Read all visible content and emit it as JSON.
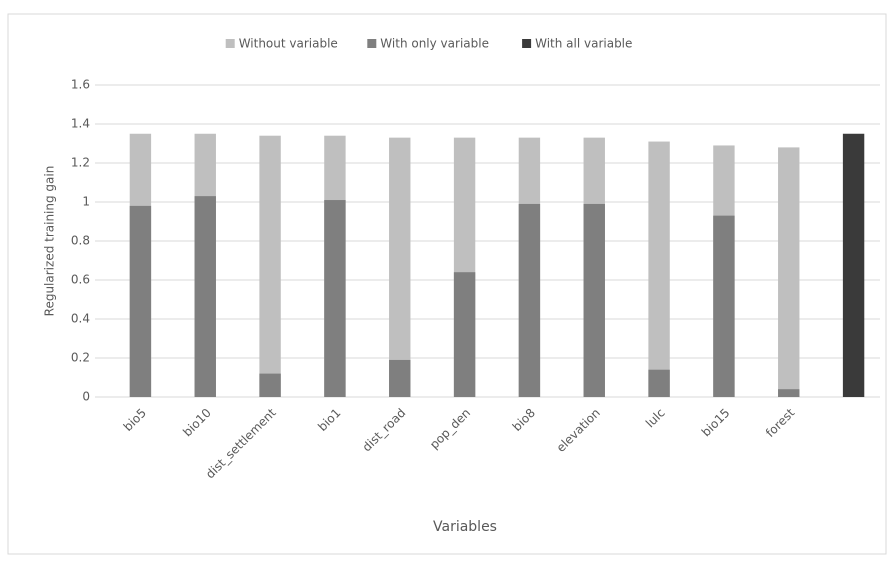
{
  "chart_data": {
    "type": "bar",
    "barmode": "overlay",
    "x_label": "Variables",
    "y_label": "Regularized training gain",
    "categories": [
      "bio5",
      "bio10",
      "dist_settlement",
      "bio1",
      "dist_road",
      "pop_den",
      "bio8",
      "elevation",
      "lulc",
      "bio15",
      "forest",
      null
    ],
    "series": [
      {
        "name": "Without variable",
        "color": "#bfbfbf",
        "values": [
          1.35,
          1.35,
          1.34,
          1.34,
          1.33,
          1.33,
          1.33,
          1.33,
          1.31,
          1.29,
          1.28,
          null
        ]
      },
      {
        "name": "With only variable",
        "color": "#7f7f7f",
        "values": [
          0.98,
          1.03,
          0.12,
          1.01,
          0.19,
          0.64,
          0.99,
          0.99,
          0.14,
          0.93,
          0.04,
          null
        ]
      },
      {
        "name": "With all variable",
        "color": "#3a3a3a",
        "values": [
          null,
          null,
          null,
          null,
          null,
          null,
          null,
          null,
          null,
          null,
          null,
          1.35
        ]
      }
    ],
    "ylim": [
      0,
      1.6
    ],
    "yticks": [
      0,
      0.2,
      0.4,
      0.6,
      0.8,
      1,
      1.2,
      1.4,
      1.6
    ],
    "grid": true,
    "legend": "top"
  }
}
